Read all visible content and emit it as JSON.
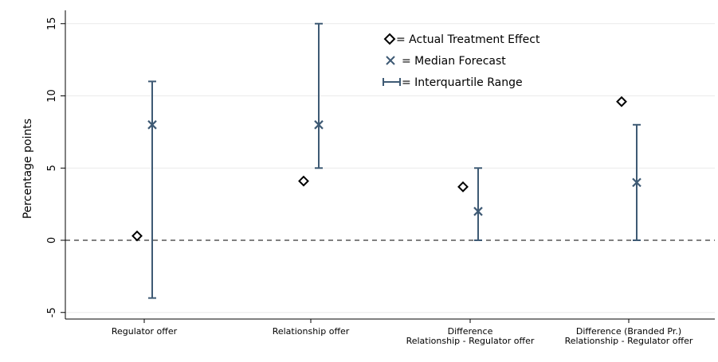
{
  "chart_data": {
    "type": "scatter",
    "ylabel": "Percentage points",
    "ylim": [
      -6,
      16
    ],
    "yticks": [
      -5,
      0,
      5,
      10,
      15
    ],
    "ytick_labels": [
      "-5",
      "0",
      "5",
      "10",
      "15"
    ],
    "grid": "horizontal",
    "reference_line": 0,
    "categories": [
      [
        "Regulator offer"
      ],
      [
        "Relationship offer"
      ],
      [
        "Difference",
        "Relationship - Regulator offer"
      ],
      [
        "Difference (Branded Pr.)",
        "Relationship - Regulator offer"
      ]
    ],
    "series": [
      {
        "name": "= Actual Treatment Effect",
        "values": [
          0.3,
          4.1,
          3.7,
          9.6
        ]
      },
      {
        "name": "= Median Forecast",
        "values": [
          8,
          8,
          2,
          4
        ]
      },
      {
        "name": "= Interquartile Range",
        "ranges": [
          [
            -4,
            11
          ],
          [
            5,
            15
          ],
          [
            0,
            5
          ],
          [
            0,
            8
          ]
        ]
      }
    ],
    "legend": "top-center",
    "colors": {
      "actual": "#000000",
      "forecast": "#3e5a74",
      "range": "#3e5a74",
      "grid": "#eaeaea"
    }
  }
}
